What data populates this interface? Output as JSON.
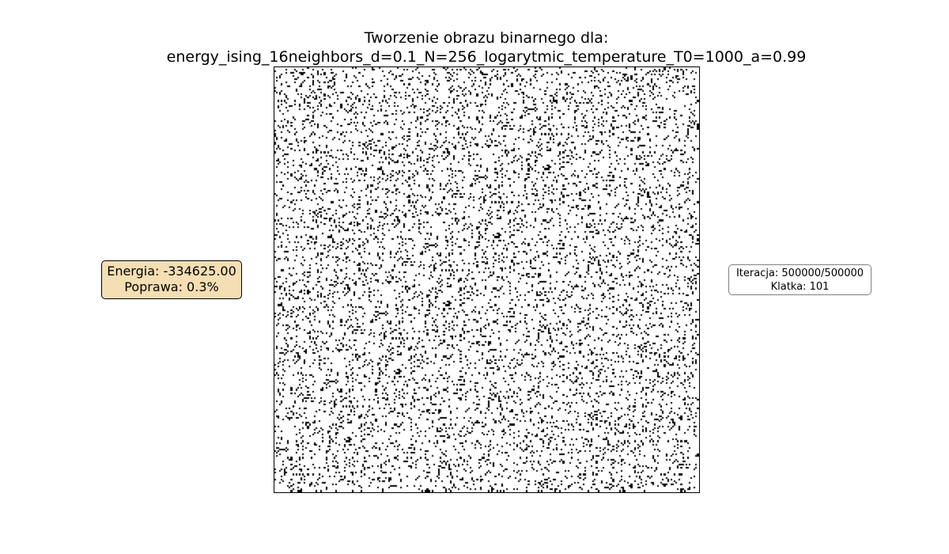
{
  "chart_data": {
    "type": "heatmap",
    "title_lines": [
      "Tworzenie obrazu binarnego dla:",
      "energy_ising_16neighbors_d=0.1_N=256_logarytmic_temperature_T0=1000_a=0.99"
    ],
    "grid_size": 256,
    "black_fraction": 0.12,
    "colors": {
      "on": "#000000",
      "off": "#ffffff"
    },
    "axes": "off",
    "annotations": {
      "energy": "Energia: -334625.00",
      "improvement": "Poprawa: 0.3%",
      "iteration": "Iteracja: 500000/500000",
      "frame": "Klatka: 101"
    }
  }
}
